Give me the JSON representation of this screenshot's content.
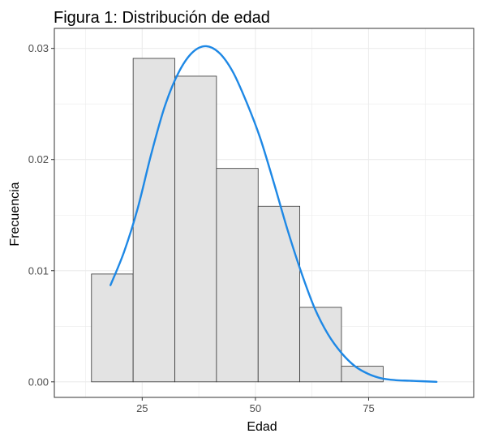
{
  "chart_data": {
    "type": "histogram",
    "title": "Figura 1: Distribución de edad",
    "xlabel": "Edad",
    "ylabel": "Frecuencia",
    "xlim": [
      5.6,
      98.2
    ],
    "ylim": [
      -0.0014,
      0.0318
    ],
    "x_ticks": [
      25,
      50,
      75
    ],
    "y_ticks": [
      0.0,
      0.01,
      0.02,
      0.03
    ],
    "y_tick_labels": [
      "0.00",
      "0.01",
      "0.02",
      "0.03"
    ],
    "bins": [
      {
        "start": 13.8,
        "end": 23.0,
        "density": 0.0097
      },
      {
        "start": 23.0,
        "end": 32.2,
        "density": 0.0291
      },
      {
        "start": 32.2,
        "end": 41.4,
        "density": 0.0275
      },
      {
        "start": 41.4,
        "end": 50.6,
        "density": 0.0192
      },
      {
        "start": 50.6,
        "end": 59.8,
        "density": 0.0158
      },
      {
        "start": 59.8,
        "end": 69.0,
        "density": 0.0067
      },
      {
        "start": 69.0,
        "end": 78.2,
        "density": 0.0014
      },
      {
        "start": 78.2,
        "end": 87.4,
        "density": 0.0
      },
      {
        "start": 87.4,
        "end": 96.6,
        "density": 0.0
      }
    ],
    "density_curve": {
      "x": [
        18,
        21,
        24,
        27,
        30,
        33,
        36,
        39,
        42,
        45,
        48,
        51,
        54,
        57,
        60,
        63,
        66,
        69,
        72,
        75,
        78,
        81,
        84,
        87,
        90
      ],
      "y": [
        0.0087,
        0.0117,
        0.0156,
        0.0205,
        0.0248,
        0.0278,
        0.0296,
        0.0302,
        0.0296,
        0.0279,
        0.0252,
        0.022,
        0.018,
        0.0138,
        0.01,
        0.0067,
        0.0043,
        0.0026,
        0.0014,
        0.0007,
        0.0003,
        0.00015,
        0.0001,
        5e-05,
        0.0
      ]
    },
    "colors": {
      "bar_fill": "#e3e3e3",
      "bar_stroke": "#333333",
      "curve": "#1e88e5",
      "grid": "#ebebeb",
      "panel_border": "#333333"
    },
    "grid": true,
    "legend": "none"
  }
}
